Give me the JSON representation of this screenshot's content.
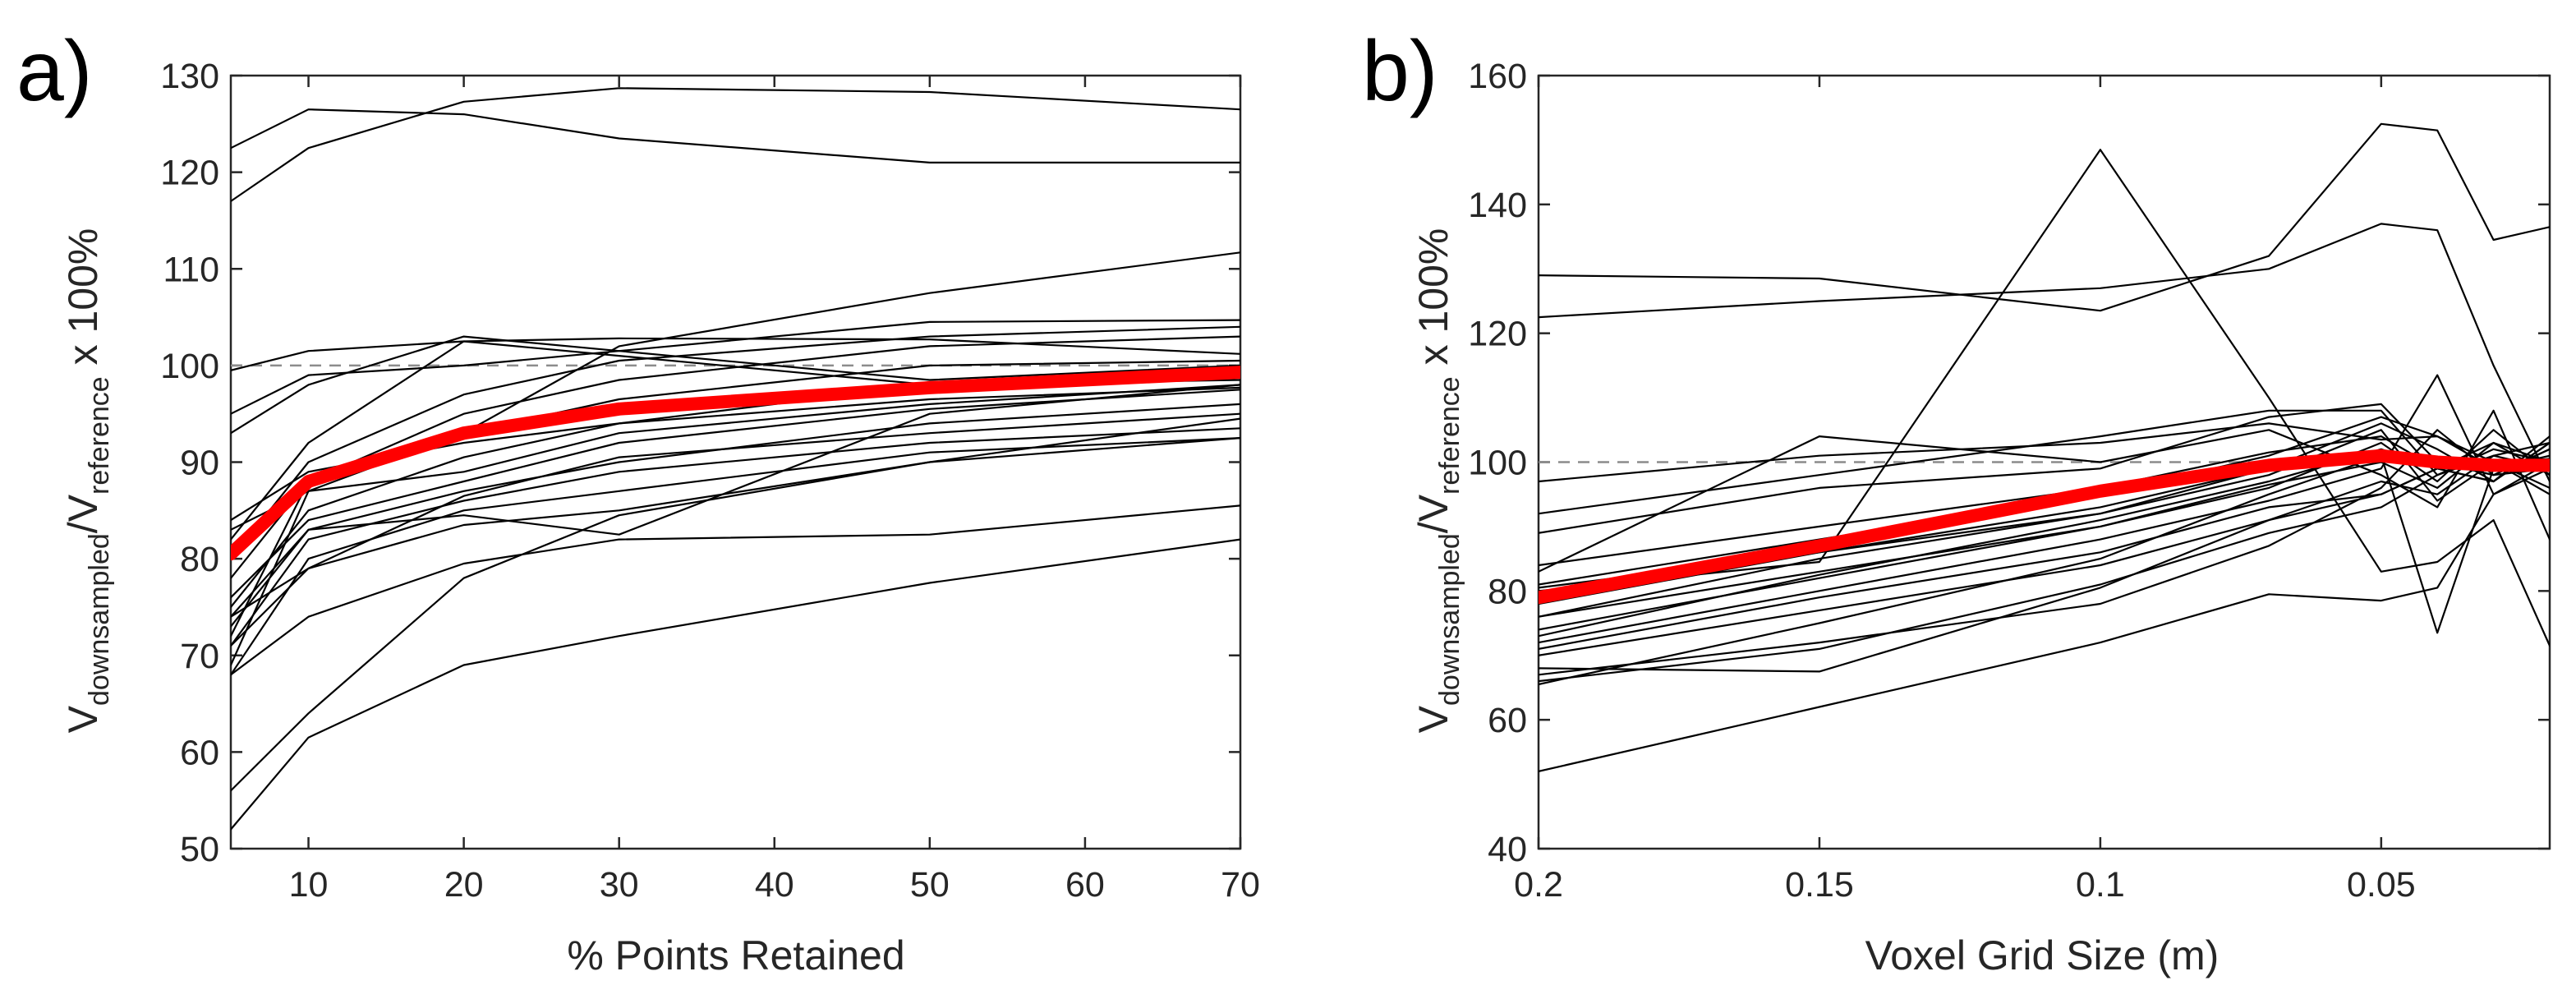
{
  "chart_data": [
    {
      "type": "line",
      "panel_label": "a)",
      "xlabel": "% Points Retained",
      "ylabel": {
        "main": "V",
        "sub1": "downsampled",
        "mid": "/V",
        "sub2": "reference",
        "tail": " x 100%"
      },
      "xlim": [
        5,
        70
      ],
      "ylim": [
        50,
        130
      ],
      "xticks": [
        10,
        20,
        30,
        40,
        50,
        60,
        70
      ],
      "yticks": [
        50,
        60,
        70,
        80,
        90,
        100,
        110,
        120,
        130
      ],
      "reference_line": 100,
      "x": [
        5,
        10,
        20,
        30,
        50,
        70
      ],
      "series": [
        {
          "name": "mean",
          "values": [
            80.5,
            88,
            93,
            95.5,
            97.7,
            99.3
          ]
        },
        {
          "values": [
            122.5,
            126.5,
            126,
            123.5,
            121,
            121
          ]
        },
        {
          "values": [
            117,
            122.5,
            127.3,
            128.7,
            128.3,
            126.5
          ]
        },
        {
          "values": [
            52,
            61.5,
            69,
            72,
            77.5,
            82
          ]
        },
        {
          "values": [
            56,
            64,
            78,
            84.5,
            90,
            94.5
          ]
        },
        {
          "values": [
            68,
            74,
            79.5,
            82,
            82.5,
            85.5
          ]
        },
        {
          "values": [
            71,
            79,
            83.5,
            85,
            90,
            92.5
          ]
        },
        {
          "values": [
            74,
            83,
            84.5,
            82.5,
            95,
            98
          ]
        },
        {
          "values": [
            99.5,
            101.5,
            102.5,
            102.8,
            102.7,
            101.2
          ]
        },
        {
          "values": [
            95,
            99,
            100,
            101.5,
            104.5,
            104.7
          ]
        },
        {
          "values": [
            93,
            98,
            103,
            101.5,
            98.5,
            100
          ]
        },
        {
          "values": [
            82,
            92,
            102.5,
            101,
            98,
            98.5
          ]
        },
        {
          "values": [
            80,
            90,
            97,
            100.5,
            103,
            104
          ]
        },
        {
          "values": [
            78,
            88,
            95,
            98.5,
            102,
            103
          ]
        },
        {
          "values": [
            72,
            88,
            93,
            102,
            107.5,
            111.7
          ]
        },
        {
          "values": [
            69,
            87,
            93,
            96.5,
            100,
            100.5
          ]
        },
        {
          "values": [
            83,
            87,
            89,
            93,
            96,
            98
          ]
        },
        {
          "values": [
            75,
            85,
            90.5,
            94,
            98,
            99.5
          ]
        },
        {
          "values": [
            76,
            84,
            88,
            92,
            95.5,
            97.5
          ]
        },
        {
          "values": [
            73,
            83,
            87,
            90,
            94,
            96
          ]
        },
        {
          "values": [
            71,
            82,
            86,
            89,
            92,
            93.5
          ]
        },
        {
          "values": [
            68,
            80,
            85,
            87,
            91,
            92.5
          ]
        },
        {
          "values": [
            84,
            89,
            92,
            94,
            96.5,
            97.7
          ]
        },
        {
          "values": [
            74,
            79,
            86.5,
            90.5,
            93,
            95
          ]
        }
      ]
    },
    {
      "type": "line",
      "panel_label": "b)",
      "xlabel": "Voxel Grid Size (m)",
      "ylabel": {
        "main": "V",
        "sub1": "downsampled",
        "mid": "/V",
        "sub2": "reference",
        "tail": " x 100%"
      },
      "xlim": [
        0.2,
        0.02
      ],
      "ylim": [
        40,
        160
      ],
      "xticks": [
        0.2,
        0.15,
        0.1,
        0.05
      ],
      "xtick_labels": [
        "0.2",
        "0.15",
        "0.1",
        "0.05"
      ],
      "yticks": [
        40,
        60,
        80,
        100,
        120,
        140,
        160
      ],
      "reference_line": 100,
      "x": [
        0.2,
        0.15,
        0.1,
        0.07,
        0.05,
        0.04,
        0.03,
        0.02
      ],
      "series": [
        {
          "name": "mean",
          "values": [
            79,
            87,
            95.5,
            99.5,
            101,
            100,
            99.5,
            99.5
          ]
        },
        {
          "values": [
            129,
            128.5,
            123.5,
            132,
            152.5,
            151.5,
            134.5,
            136.5
          ]
        },
        {
          "values": [
            122.5,
            125,
            127,
            130,
            137,
            136,
            115,
            97
          ]
        },
        {
          "values": [
            52,
            62,
            72,
            79.5,
            78.5,
            80.5,
            95,
            100
          ]
        },
        {
          "values": [
            80,
            84.5,
            148.5,
            110,
            83,
            84.5,
            91,
            71.5
          ]
        },
        {
          "values": [
            65.5,
            75,
            85,
            95,
            101,
            73.5,
            99,
            100
          ]
        },
        {
          "values": [
            67,
            72,
            78,
            87,
            96,
            105,
            98,
            99
          ]
        },
        {
          "values": [
            70,
            77,
            84,
            91,
            97,
            95,
            101,
            103
          ]
        },
        {
          "values": [
            72,
            80,
            88,
            94,
            99,
            113.5,
            95,
            99
          ]
        },
        {
          "values": [
            74,
            82,
            90,
            96,
            103,
            97,
            105,
            98
          ]
        },
        {
          "values": [
            76,
            85,
            92,
            98,
            105,
            94,
            100,
            96
          ]
        },
        {
          "values": [
            78,
            86,
            93,
            99,
            106,
            102,
            97,
            104
          ]
        },
        {
          "values": [
            81,
            88,
            95,
            101,
            107,
            104,
            99,
            101
          ]
        },
        {
          "values": [
            84,
            90,
            96,
            101.5,
            104,
            99,
            103,
            100
          ]
        },
        {
          "values": [
            89,
            96,
            99,
            107,
            109,
            100,
            98,
            102
          ]
        },
        {
          "values": [
            92,
            98,
            104,
            108,
            108,
            98,
            101,
            99
          ]
        },
        {
          "values": [
            97,
            101,
            103,
            106,
            103.5,
            104,
            100,
            95
          ]
        },
        {
          "values": [
            83,
            104,
            100,
            105,
            98,
            93,
            108,
            88
          ]
        },
        {
          "values": [
            68,
            67.5,
            80.5,
            91,
            95,
            99,
            97,
            103
          ]
        },
        {
          "values": [
            66,
            71,
            81,
            89,
            93,
            98,
            102,
            100
          ]
        },
        {
          "values": [
            71,
            79,
            86,
            93,
            95,
            99,
            97,
            103
          ]
        },
        {
          "values": [
            76,
            83,
            90,
            96.5,
            100,
            96,
            103,
            98
          ]
        },
        {
          "values": [
            73,
            82.5,
            91,
            97,
            102,
            99,
            100,
            100.5
          ]
        },
        {
          "values": [
            80.5,
            86,
            92,
            99,
            101.5,
            100,
            98,
            102
          ]
        }
      ]
    }
  ]
}
